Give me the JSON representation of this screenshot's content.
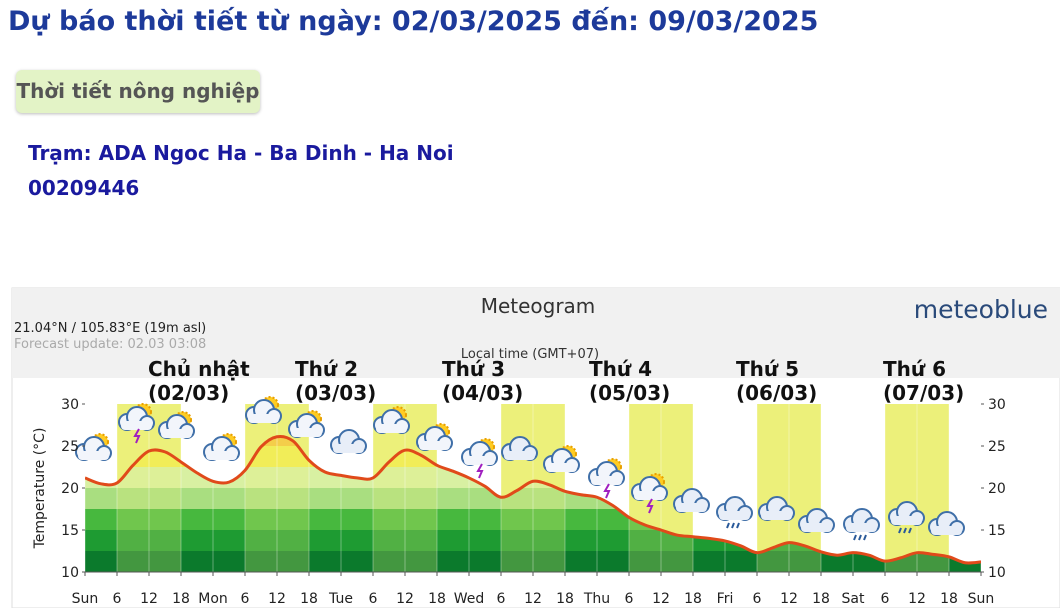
{
  "header": {
    "title": "Dự báo thời tiết từ ngày: 02/03/2025 đến: 09/03/2025"
  },
  "button": {
    "label": "Thời tiết nông nghiệp"
  },
  "station": {
    "name": "Trạm: ADA Ngoc Ha - Ba Dinh - Ha Noi",
    "code": "00209446"
  },
  "chart_data": {
    "type": "line",
    "title": "Meteogram",
    "brand": "meteoblue",
    "location": "21.04°N / 105.83°E (19m asl)",
    "forecast_update": "Forecast update: 02.03 03:08",
    "local_time": "Local time (GMT+07)",
    "day_labels": [
      [
        "Chủ nhật",
        "(02/03)"
      ],
      [
        "Thứ 2",
        "(03/03)"
      ],
      [
        "Thứ 3",
        "(04/03)"
      ],
      [
        "Thứ 4",
        "(05/03)"
      ],
      [
        "Thứ 5",
        "(06/03)"
      ],
      [
        "Thứ 6",
        "(07/03)"
      ]
    ],
    "y_label": "Temperature (°C)",
    "x": [
      0,
      3,
      6,
      9,
      12,
      15,
      18,
      21,
      24,
      27,
      30,
      33,
      36,
      39,
      42,
      45,
      48,
      51,
      54,
      57,
      60,
      63,
      66,
      69,
      72,
      75,
      78,
      81,
      84,
      87,
      90,
      93,
      96,
      99,
      102,
      105,
      108,
      111,
      114,
      117,
      120,
      123,
      126,
      129,
      132,
      135,
      138,
      141,
      144,
      147,
      150,
      153,
      156,
      159,
      162,
      165,
      168
    ],
    "series": [
      {
        "name": "Temperature",
        "color": "#e04a1a",
        "values": [
          21.2,
          20.5,
          20.6,
          22.7,
          24.4,
          24.3,
          23.1,
          21.8,
          20.8,
          20.7,
          22.1,
          24.9,
          26.1,
          25.6,
          23.3,
          21.9,
          21.5,
          21.2,
          21.2,
          23.1,
          24.5,
          23.9,
          22.7,
          22.0,
          21.2,
          20.2,
          18.9,
          19.7,
          20.8,
          20.4,
          19.6,
          19.2,
          18.9,
          17.9,
          16.5,
          15.6,
          15.0,
          14.4,
          14.2,
          14.0,
          13.7,
          13.1,
          12.3,
          12.9,
          13.5,
          13.1,
          12.4,
          12.0,
          12.3,
          12.0,
          11.3,
          11.7,
          12.3,
          12.1,
          11.8,
          11.1,
          11.2
        ]
      }
    ],
    "xlim": [
      0,
      168
    ],
    "xticks": [
      {
        "value": 0,
        "label": "Sun"
      },
      6,
      12,
      18,
      {
        "value": 24,
        "label": "Mon"
      },
      {
        "value": 30,
        "label": "6"
      },
      {
        "value": 36,
        "label": "12"
      },
      {
        "value": 42,
        "label": "18"
      },
      {
        "value": 48,
        "label": "Tue"
      },
      {
        "value": 54,
        "label": "6"
      },
      {
        "value": 60,
        "label": "12"
      },
      {
        "value": 66,
        "label": "18"
      },
      {
        "value": 72,
        "label": "Wed"
      },
      {
        "value": 78,
        "label": "6"
      },
      {
        "value": 84,
        "label": "12"
      },
      {
        "value": 90,
        "label": "18"
      },
      {
        "value": 96,
        "label": "Thu"
      },
      {
        "value": 102,
        "label": "6"
      },
      {
        "value": 108,
        "label": "12"
      },
      {
        "value": 114,
        "label": "18"
      },
      {
        "value": 120,
        "label": "Fri"
      },
      {
        "value": 126,
        "label": "6"
      },
      {
        "value": 132,
        "label": "12"
      },
      {
        "value": 138,
        "label": "18"
      },
      {
        "value": 144,
        "label": "Sat"
      },
      {
        "value": 150,
        "label": "6"
      },
      {
        "value": 156,
        "label": "12"
      },
      {
        "value": 162,
        "label": "18"
      },
      {
        "value": 168,
        "label": "Sun"
      }
    ],
    "ylim": [
      10,
      30
    ],
    "yticks": [
      10,
      15,
      20,
      25,
      30
    ],
    "y2lim": [
      10,
      30
    ],
    "y2ticks": [
      10,
      15,
      20,
      25,
      30
    ],
    "daytime_color": "#ecf07a",
    "daytime": [
      [
        6,
        18
      ],
      [
        30,
        42
      ],
      [
        54,
        66
      ],
      [
        78,
        90
      ],
      [
        102,
        114
      ],
      [
        126,
        138
      ],
      [
        150,
        162
      ]
    ],
    "bands": [
      {
        "from": 10,
        "to": 12.5,
        "color": "#0b7a2c"
      },
      {
        "from": 12.5,
        "to": 15,
        "color": "#1e9b32"
      },
      {
        "from": 15,
        "to": 17.5,
        "color": "#47b83e"
      },
      {
        "from": 17.5,
        "to": 20,
        "color": "#a9de80"
      },
      {
        "from": 20,
        "to": 22.5,
        "color": "#d8f0a2"
      },
      {
        "from": 22.5,
        "to": 25,
        "color": "#f3ec4c"
      },
      {
        "from": 25,
        "to": 30,
        "color": "#f7c33a"
      }
    ]
  }
}
